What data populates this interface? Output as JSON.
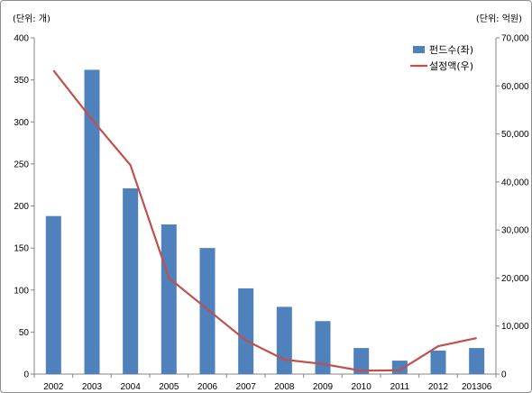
{
  "chart_data": {
    "type": "bar+line",
    "left_unit_label": "(단위: 개)",
    "right_unit_label": "(단위: 억원)",
    "categories": [
      "2002",
      "2003",
      "2004",
      "2005",
      "2006",
      "2007",
      "2008",
      "2009",
      "2010",
      "2011",
      "2012",
      "201306"
    ],
    "series": [
      {
        "name": "펀드수(좌)",
        "kind": "bar",
        "axis": "left",
        "color": "#4f81bd",
        "values": [
          188,
          362,
          221,
          178,
          150,
          102,
          80,
          63,
          31,
          16,
          28,
          31
        ]
      },
      {
        "name": "설정액(우)",
        "kind": "line",
        "axis": "right",
        "color": "#c0504d",
        "values": [
          63200,
          53000,
          43500,
          20000,
          13500,
          7000,
          3000,
          2100,
          700,
          800,
          5800,
          7500
        ]
      }
    ],
    "left_axis": {
      "min": 0,
      "max": 400,
      "step": 50,
      "ticks": [
        "0",
        "50",
        "100",
        "150",
        "200",
        "250",
        "300",
        "350",
        "400"
      ]
    },
    "right_axis": {
      "min": 0,
      "max": 70000,
      "step": 10000,
      "ticks": [
        "0",
        "10,000",
        "20,000",
        "30,000",
        "40,000",
        "50,000",
        "60,000",
        "70,000"
      ]
    },
    "grid": false,
    "legend_position": "top-right"
  }
}
